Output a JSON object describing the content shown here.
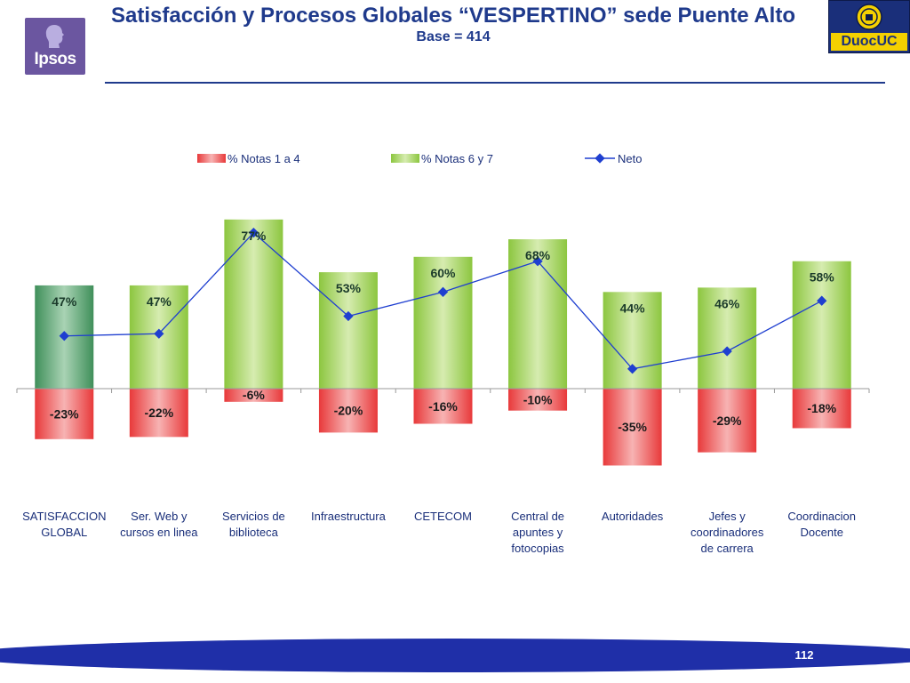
{
  "header": {
    "title": "Satisfacción y Procesos Globales “VESPERTINO” sede Puente Alto",
    "subtitle": "Base = 414",
    "ipsos_logo_text": "Ipsos",
    "duoc_logo_text": "DuocUC"
  },
  "footer": {
    "page_number": "112"
  },
  "colors": {
    "title": "#1f3a8c",
    "negative_bar": "#e8393a",
    "positive_bar": "#8cc63f",
    "global_bar": "#3f8f5a",
    "neto_line": "#1f3fd0",
    "footer_band": "#1f2fa8"
  },
  "chart_data": {
    "type": "bar",
    "categories": [
      [
        "SATISFACCION",
        "GLOBAL"
      ],
      [
        "Ser. Web y",
        "cursos en linea"
      ],
      [
        "Servicios de",
        "biblioteca"
      ],
      [
        "Infraestructura"
      ],
      [
        "CETECOM"
      ],
      [
        "Central de",
        "apuntes y",
        "fotocopias"
      ],
      [
        "Autoridades"
      ],
      [
        "Jefes y",
        "coordinadores",
        "de carrera"
      ],
      [
        "Coordinacion",
        "Docente"
      ]
    ],
    "series": [
      {
        "name": "% Notas 1 a 4",
        "values": [
          -23,
          -22,
          -6,
          -20,
          -16,
          -10,
          -35,
          -29,
          -18
        ],
        "labels": [
          "-23%",
          "-22%",
          "-6%",
          "-20%",
          "-16%",
          "-10%",
          "-35%",
          "-29%",
          "-18%"
        ]
      },
      {
        "name": "% Notas 6 y 7",
        "values": [
          47,
          47,
          77,
          53,
          60,
          68,
          44,
          46,
          58
        ],
        "labels": [
          "47%",
          "47%",
          "77%",
          "53%",
          "60%",
          "68%",
          "44%",
          "46%",
          "58%"
        ]
      },
      {
        "name": "Neto",
        "values": [
          24,
          25,
          71,
          33,
          44,
          58,
          9,
          17,
          40
        ]
      }
    ],
    "legend_position": "top",
    "grid": false
  }
}
